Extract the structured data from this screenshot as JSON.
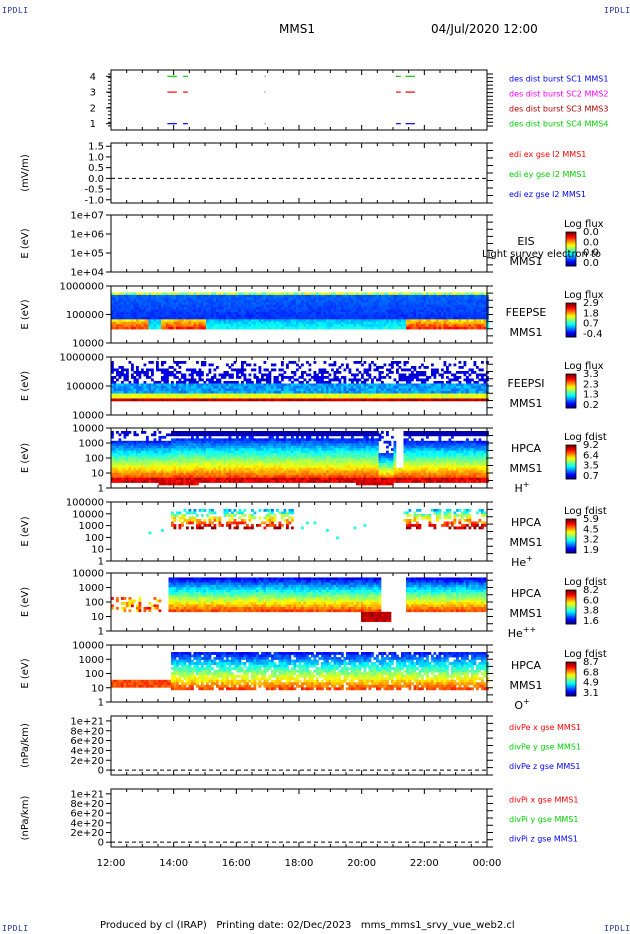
{
  "corner_labels": {
    "top_left": "IPDLI",
    "top_right": "IPDLI",
    "bottom_left": "IPDLI",
    "bottom_right": "IPDLI"
  },
  "header": {
    "spacecraft": "MMS1",
    "datetime": "04/Jul/2020 12:00"
  },
  "footer": {
    "credit": "Produced by cl (IRAP)   Printing date: 02/Dec/2023   mms_mms1_srvy_vue_web2.cl"
  },
  "colors": {
    "red": "#ff0000",
    "green": "#00d000",
    "blue": "#0000ff",
    "magenta": "#ff00ff",
    "dark_red": "#b00000",
    "dark_green": "#00b000"
  },
  "chart_data": [
    {
      "type": "line",
      "panel": "burst",
      "ylim": [
        0.6,
        4.4
      ],
      "yticks": [
        "1",
        "2",
        "3",
        "4"
      ],
      "ylabel": "",
      "legend": [
        {
          "name": "des dist burst SC1 MMS1",
          "color": "#0000ff"
        },
        {
          "name": "des dist burst SC2 MMS2",
          "color": "#ff00ff"
        },
        {
          "name": "des dist burst SC3 MMS3",
          "color": "#b00000"
        },
        {
          "name": "des dist burst SC4 MMS4",
          "color": "#00d000"
        }
      ],
      "segments": [
        {
          "level": 4,
          "color": "#00d000",
          "ranges": [
            [
              13.8,
              14.1
            ],
            [
              14.3,
              14.45
            ],
            [
              21.1,
              21.25
            ],
            [
              21.4,
              21.7
            ]
          ]
        },
        {
          "level": 3,
          "color": "#ff0000",
          "ranges": [
            [
              13.8,
              14.1
            ],
            [
              14.3,
              14.45
            ],
            [
              21.1,
              21.25
            ],
            [
              21.4,
              21.7
            ]
          ]
        },
        {
          "level": 1,
          "color": "#0000ff",
          "ranges": [
            [
              13.8,
              14.1
            ],
            [
              14.3,
              14.45
            ],
            [
              21.1,
              21.25
            ],
            [
              21.4,
              21.7
            ]
          ]
        }
      ],
      "dots": [
        16.9,
        21.1
      ]
    },
    {
      "type": "line",
      "panel": "edi",
      "ylabel": "(mV/m)",
      "ylim": [
        -1.15,
        1.65
      ],
      "yticks": [
        "1.5",
        "1.0",
        "0.5",
        "0.0",
        "-0.5",
        "-1.0"
      ],
      "ytick_values": [
        1.5,
        1.0,
        0.5,
        0.0,
        -0.5,
        -1.0
      ],
      "dashed_zero": true,
      "legend": [
        {
          "name": "edi ex gse l2 MMS1",
          "color": "#ff0000"
        },
        {
          "name": "edi ey gse l2 MMS1",
          "color": "#00d000"
        },
        {
          "name": "edi ez gse l2 MMS1",
          "color": "#0000ff"
        }
      ],
      "series": []
    },
    {
      "type": "heatmap",
      "panel": "eis",
      "ylabel": "E (eV)",
      "scale": "log",
      "ylim": [
        10000,
        10000000
      ],
      "yticks": [
        "1e+07",
        "1e+06",
        "1e+05",
        "1e+04"
      ],
      "species_label": [
        "EIS",
        "MMS1"
      ],
      "overlay_text": "Light survey electron to",
      "colorbar": {
        "title": "Log flux",
        "ticks": [
          "0.0",
          "0.0",
          "0.0",
          "0.0"
        ]
      },
      "data": "empty"
    },
    {
      "type": "heatmap",
      "panel": "feepse",
      "ylabel": "E (eV)",
      "scale": "log",
      "ylim": [
        10000,
        1000000
      ],
      "yticks": [
        "1000000",
        "100000",
        "10000"
      ],
      "species_label": [
        "FEEPSE",
        "MMS1"
      ],
      "colorbar": {
        "title": "Log flux",
        "ticks": [
          "2.9",
          "1.8",
          "0.7",
          "-0.4"
        ]
      }
    },
    {
      "type": "heatmap",
      "panel": "feepsi",
      "ylabel": "E (eV)",
      "scale": "log",
      "ylim": [
        10000,
        1000000
      ],
      "yticks": [
        "1000000",
        "100000",
        "10000"
      ],
      "species_label": [
        "FEEPSI",
        "MMS1"
      ],
      "colorbar": {
        "title": "Log flux",
        "ticks": [
          "3.3",
          "2.3",
          "1.3",
          "0.2"
        ]
      }
    },
    {
      "type": "heatmap",
      "panel": "hpca_h",
      "ylabel": "E (eV)",
      "scale": "log",
      "ylim": [
        1,
        10000
      ],
      "yticks": [
        "10000",
        "1000",
        "100",
        "10",
        "1"
      ],
      "species_label": [
        "HPCA",
        "MMS1",
        "H+"
      ],
      "colorbar": {
        "title": "Log fdist",
        "ticks": [
          "9.2",
          "6.4",
          "3.5",
          "0.7"
        ]
      }
    },
    {
      "type": "heatmap",
      "panel": "hpca_he",
      "ylabel": "E (eV)",
      "scale": "log",
      "ylim": [
        1,
        100000
      ],
      "yticks": [
        "100000",
        "10000",
        "1000",
        "100",
        "10",
        "1"
      ],
      "species_label": [
        "HPCA",
        "MMS1",
        "He+"
      ],
      "colorbar": {
        "title": "Log fdist",
        "ticks": [
          "5.9",
          "4.5",
          "3.2",
          "1.9"
        ]
      }
    },
    {
      "type": "heatmap",
      "panel": "hpca_hepp",
      "ylabel": "E (eV)",
      "scale": "log",
      "ylim": [
        1,
        10000
      ],
      "yticks": [
        "10000",
        "1000",
        "100",
        "10",
        "1"
      ],
      "species_label": [
        "HPCA",
        "MMS1",
        "He++"
      ],
      "colorbar": {
        "title": "Log fdist",
        "ticks": [
          "8.2",
          "6.0",
          "3.8",
          "1.6"
        ]
      }
    },
    {
      "type": "heatmap",
      "panel": "hpca_o",
      "ylabel": "E (eV)",
      "scale": "log",
      "ylim": [
        1,
        10000
      ],
      "yticks": [
        "10000",
        "1000",
        "100",
        "10",
        "1"
      ],
      "species_label": [
        "HPCA",
        "MMS1",
        "O+"
      ],
      "colorbar": {
        "title": "Log fdist",
        "ticks": [
          "8.7",
          "6.8",
          "4.9",
          "3.1"
        ]
      }
    },
    {
      "type": "line",
      "panel": "divpe",
      "ylabel": "(nPa/km)",
      "ylim": [
        -1e+20,
        1.1e+21
      ],
      "yticks": [
        "1e+21",
        "8e+20",
        "6e+20",
        "4e+20",
        "2e+20",
        "0"
      ],
      "ytick_values": [
        1e+21,
        8e+20,
        6e+20,
        4e+20,
        2e+20,
        0
      ],
      "dashed_zero": true,
      "legend": [
        {
          "name": "divPe x gse MMS1",
          "color": "#ff0000"
        },
        {
          "name": "divPe y gse MMS1",
          "color": "#00d000"
        },
        {
          "name": "divPe z gse MMS1",
          "color": "#0000ff"
        }
      ],
      "series": []
    },
    {
      "type": "line",
      "panel": "divpi",
      "ylabel": "(nPa/km)",
      "ylim": [
        -1e+20,
        1.1e+21
      ],
      "yticks": [
        "1e+21",
        "8e+20",
        "6e+20",
        "4e+20",
        "2e+20",
        "0"
      ],
      "ytick_values": [
        1e+21,
        8e+20,
        6e+20,
        4e+20,
        2e+20,
        0
      ],
      "dashed_zero": true,
      "legend": [
        {
          "name": "divPi x gse MMS1",
          "color": "#ff0000"
        },
        {
          "name": "divPi y gse MMS1",
          "color": "#00d000"
        },
        {
          "name": "divPi z gse MMS1",
          "color": "#0000ff"
        }
      ],
      "series": []
    }
  ],
  "time_axis": {
    "start_hour": 12,
    "end_hour": 24,
    "tick_labels": [
      "12:00",
      "14:00",
      "16:00",
      "18:00",
      "20:00",
      "22:00",
      "00:00"
    ]
  }
}
